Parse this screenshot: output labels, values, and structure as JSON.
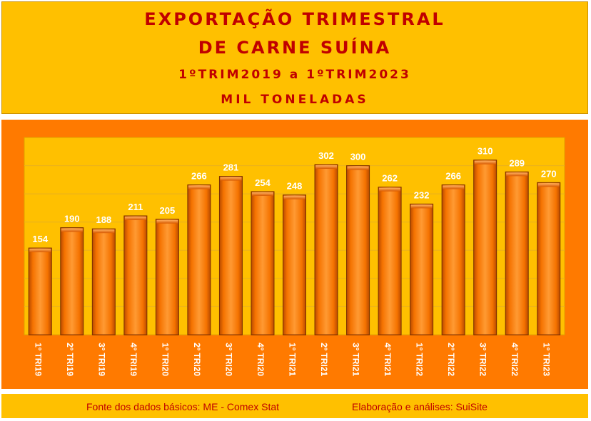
{
  "header": {
    "title_line1": "EXPORTAÇÃO TRIMESTRAL",
    "title_line2": "DE CARNE SUÍNA",
    "period": "1ºTRIM2019 a 1ºTRIM2023",
    "unit": "MIL TONELADAS"
  },
  "footer": {
    "source": "Fonte dos dados básicos: ME - Comex Stat",
    "credit": "Elaboração e análises: SuiSite"
  },
  "colors": {
    "header_bg": "#FFC000",
    "chart_bg": "#FF7A00",
    "plot_bg": "#FFC000",
    "bar": "#F26B00",
    "title": "#C00000"
  },
  "chart_data": {
    "type": "bar",
    "categories": [
      "1º TRI19",
      "2º TRI19",
      "3º TRI19",
      "4º TRI19",
      "1º TRI20",
      "2º TRI20",
      "3º TRI20",
      "4º TRI20",
      "1º TRI21",
      "2º TRI21",
      "3º TRI21",
      "4º TRI21",
      "1º TRI22",
      "2º TRI22",
      "3º TRI22",
      "4º TRI22",
      "1º TRI23"
    ],
    "values": [
      154,
      190,
      188,
      211,
      205,
      266,
      281,
      254,
      248,
      302,
      300,
      262,
      232,
      266,
      310,
      289,
      270
    ],
    "title": "EXPORTAÇÃO TRIMESTRAL DE CARNE SUÍNA",
    "ylim": [
      0,
      350
    ],
    "grid": true,
    "legend": "none"
  }
}
